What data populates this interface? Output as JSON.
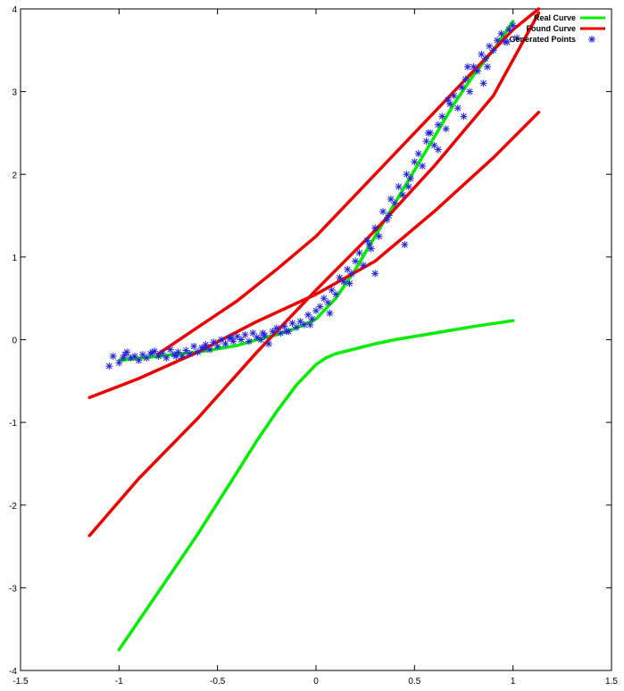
{
  "chart_data": {
    "type": "scatter",
    "title": "",
    "xlabel": "",
    "ylabel": "",
    "xlim": [
      -1.5,
      1.5
    ],
    "ylim": [
      -4,
      4
    ],
    "grid": false,
    "legend_position": "top-right",
    "xticks": [
      "-1.5",
      "-1",
      "-0.5",
      "0",
      "0.5",
      "1",
      "1.5"
    ],
    "yticks": [
      "-4",
      "-3",
      "-2",
      "-1",
      "0",
      "1",
      "2",
      "3",
      "4"
    ],
    "legend": [
      {
        "label": "Real Curve",
        "color": "#00ee00",
        "kind": "line"
      },
      {
        "label": "Found Curve",
        "color": "#ee0000",
        "kind": "line"
      },
      {
        "label": "Generated Points",
        "color": "#2222dd",
        "kind": "star"
      }
    ],
    "series": [
      {
        "name": "Real Curve",
        "kind": "line",
        "color": "#00ee00",
        "segments": [
          {
            "x": [
              -1,
              -0.8,
              -0.6,
              -0.4,
              -0.3,
              -0.2,
              -0.1,
              0,
              0.1,
              0.2,
              0.3,
              0.4,
              0.5,
              0.6,
              0.7,
              0.8,
              0.9,
              1.0
            ],
            "y": [
              -0.25,
              -0.2,
              -0.15,
              -0.07,
              0.0,
              0.06,
              0.14,
              0.25,
              0.5,
              0.85,
              1.25,
              1.65,
              2.05,
              2.45,
              2.85,
              3.2,
              3.5,
              3.85
            ]
          },
          {
            "x": [
              -1,
              -0.8,
              -0.6,
              -0.4,
              -0.3,
              -0.2,
              -0.1,
              0,
              0.05,
              0.1,
              0.2,
              0.3,
              0.4,
              0.6,
              0.8,
              1.0
            ],
            "y": [
              -3.75,
              -3.05,
              -2.35,
              -1.6,
              -1.22,
              -0.87,
              -0.55,
              -0.3,
              -0.22,
              -0.17,
              -0.11,
              -0.05,
              0.0,
              0.08,
              0.16,
              0.23
            ]
          }
        ]
      },
      {
        "name": "Found Curve",
        "kind": "line",
        "color": "#ee0000",
        "segments": [
          {
            "x": [
              -1.15,
              -0.9,
              -0.6,
              -0.3,
              0,
              0.3,
              0.6,
              0.9,
              1.13
            ],
            "y": [
              -0.7,
              -0.47,
              -0.15,
              0.22,
              0.55,
              0.95,
              1.55,
              2.2,
              2.75
            ]
          },
          {
            "x": [
              -1.15,
              -0.9,
              -0.6,
              -0.3,
              0,
              0.3,
              0.6,
              0.9,
              1.13
            ],
            "y": [
              -2.37,
              -1.68,
              -0.95,
              -0.15,
              0.6,
              1.32,
              2.1,
              2.95,
              3.95
            ]
          },
          {
            "x": [
              -0.8,
              -0.6,
              -0.4,
              -0.2,
              0,
              0.2,
              0.4,
              0.6,
              0.8,
              1.0,
              1.13
            ],
            "y": [
              -0.17,
              0.15,
              0.47,
              0.85,
              1.25,
              1.75,
              2.25,
              2.75,
              3.25,
              3.75,
              4.0
            ]
          }
        ]
      },
      {
        "name": "Generated Points",
        "kind": "scatter",
        "color": "#2222dd",
        "x": [
          -1.05,
          -1.03,
          -1.0,
          -0.98,
          -0.96,
          -0.94,
          -0.92,
          -0.9,
          -0.88,
          -0.86,
          -0.84,
          -0.82,
          -0.8,
          -0.78,
          -0.76,
          -0.74,
          -0.72,
          -0.7,
          -0.68,
          -0.66,
          -0.64,
          -0.62,
          -0.6,
          -0.58,
          -0.56,
          -0.54,
          -0.52,
          -0.5,
          -0.48,
          -0.46,
          -0.44,
          -0.42,
          -0.4,
          -0.38,
          -0.36,
          -0.34,
          -0.32,
          -0.3,
          -0.28,
          -0.26,
          -0.24,
          -0.22,
          -0.2,
          -0.18,
          -0.16,
          -0.14,
          -0.12,
          -0.1,
          -0.08,
          -0.06,
          -0.04,
          -0.02,
          0.0,
          0.02,
          0.04,
          0.06,
          0.08,
          0.1,
          0.12,
          0.14,
          0.16,
          0.18,
          0.2,
          0.22,
          0.24,
          0.26,
          0.28,
          0.3,
          0.32,
          0.34,
          0.36,
          0.38,
          0.4,
          0.42,
          0.44,
          0.46,
          0.48,
          0.5,
          0.52,
          0.54,
          0.56,
          0.58,
          0.6,
          0.62,
          0.64,
          0.66,
          0.68,
          0.7,
          0.72,
          0.74,
          0.76,
          0.78,
          0.8,
          0.82,
          0.84,
          0.86,
          0.88,
          0.9,
          0.92,
          0.94,
          0.96,
          0.98,
          1.0,
          1.02,
          -0.97,
          -0.83,
          -0.71,
          -0.57,
          -0.43,
          -0.27,
          -0.15,
          -0.03,
          0.07,
          0.17,
          0.27,
          0.37,
          0.47,
          0.57,
          0.67,
          0.77,
          0.87,
          0.97,
          0.3,
          0.45,
          0.62,
          0.75,
          0.85
        ],
        "y": [
          -0.32,
          -0.2,
          -0.28,
          -0.22,
          -0.15,
          -0.22,
          -0.2,
          -0.25,
          -0.18,
          -0.22,
          -0.17,
          -0.14,
          -0.2,
          -0.16,
          -0.22,
          -0.12,
          -0.18,
          -0.15,
          -0.2,
          -0.13,
          -0.17,
          -0.08,
          -0.15,
          -0.1,
          -0.06,
          -0.12,
          -0.03,
          -0.08,
          0.0,
          -0.05,
          0.02,
          -0.02,
          0.04,
          0.0,
          0.06,
          -0.02,
          0.08,
          0.03,
          0.0,
          0.05,
          -0.05,
          0.1,
          0.14,
          0.08,
          0.16,
          0.1,
          0.2,
          0.15,
          0.22,
          0.18,
          0.3,
          0.25,
          0.35,
          0.4,
          0.5,
          0.45,
          0.6,
          0.55,
          0.75,
          0.7,
          0.85,
          0.8,
          0.95,
          1.05,
          0.9,
          1.2,
          1.1,
          1.35,
          1.25,
          1.55,
          1.45,
          1.7,
          1.65,
          1.85,
          1.75,
          2.0,
          1.95,
          2.15,
          2.25,
          2.1,
          2.4,
          2.5,
          2.35,
          2.6,
          2.7,
          2.55,
          2.85,
          2.95,
          2.8,
          3.05,
          3.15,
          3.0,
          3.3,
          3.25,
          3.45,
          3.4,
          3.55,
          3.5,
          3.62,
          3.7,
          3.6,
          3.75,
          3.8,
          3.65,
          -0.18,
          -0.15,
          -0.2,
          -0.1,
          0.02,
          0.08,
          0.1,
          0.18,
          0.32,
          0.68,
          1.15,
          1.5,
          1.85,
          2.5,
          2.9,
          3.3,
          3.3,
          3.6,
          0.8,
          1.15,
          2.3,
          2.7,
          3.1
        ]
      }
    ]
  }
}
